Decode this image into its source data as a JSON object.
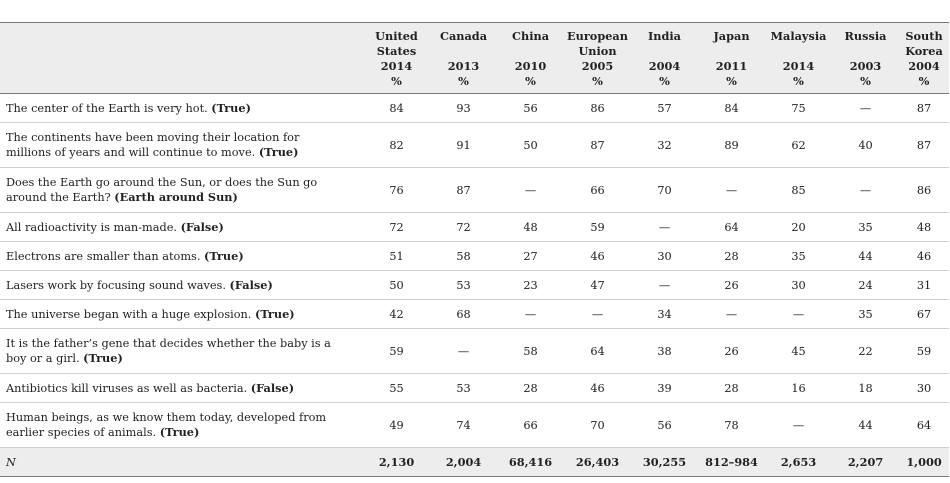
{
  "header": {
    "columns": [
      {
        "label_lines": [
          "United",
          "States"
        ],
        "year": "2014",
        "unit": "%"
      },
      {
        "label_lines": [
          "Canada",
          ""
        ],
        "year": "2013",
        "unit": "%"
      },
      {
        "label_lines": [
          "China",
          ""
        ],
        "year": "2010",
        "unit": "%"
      },
      {
        "label_lines": [
          "European",
          "Union"
        ],
        "year": "2005",
        "unit": "%"
      },
      {
        "label_lines": [
          "India",
          ""
        ],
        "year": "2004",
        "unit": "%"
      },
      {
        "label_lines": [
          "Japan",
          ""
        ],
        "year": "2011",
        "unit": "%"
      },
      {
        "label_lines": [
          "Malaysia",
          ""
        ],
        "year": "2014",
        "unit": "%"
      },
      {
        "label_lines": [
          "Russia",
          ""
        ],
        "year": "2003",
        "unit": "%"
      },
      {
        "label_lines": [
          "South",
          "Korea"
        ],
        "year": "2004",
        "unit": "%"
      }
    ]
  },
  "rows": [
    {
      "question": "The center of the Earth is very hot.",
      "answer": "(True)",
      "values": [
        "84",
        "93",
        "56",
        "86",
        "57",
        "84",
        "75",
        "—",
        "87"
      ]
    },
    {
      "question": "The continents have been moving their location for millions of years and will continue to move.",
      "answer": "(True)",
      "values": [
        "82",
        "91",
        "50",
        "87",
        "32",
        "89",
        "62",
        "40",
        "87"
      ]
    },
    {
      "question": "Does the Earth go around the Sun, or does the Sun go around the Earth?",
      "answer": "(Earth around Sun)",
      "values": [
        "76",
        "87",
        "—",
        "66",
        "70",
        "—",
        "85",
        "—",
        "86"
      ]
    },
    {
      "question": "All radioactivity is man-made.",
      "answer": "(False)",
      "values": [
        "72",
        "72",
        "48",
        "59",
        "—",
        "64",
        "20",
        "35",
        "48"
      ]
    },
    {
      "question": "Electrons are smaller than atoms.",
      "answer": "(True)",
      "values": [
        "51",
        "58",
        "27",
        "46",
        "30",
        "28",
        "35",
        "44",
        "46"
      ]
    },
    {
      "question": "Lasers work by focusing sound waves.",
      "answer": "(False)",
      "values": [
        "50",
        "53",
        "23",
        "47",
        "—",
        "26",
        "30",
        "24",
        "31"
      ]
    },
    {
      "question": "The universe began with a huge explosion.",
      "answer": "(True)",
      "values": [
        "42",
        "68",
        "—",
        "—",
        "34",
        "—",
        "—",
        "35",
        "67"
      ]
    },
    {
      "question": "It is the father’s gene that decides whether the baby is a boy or a girl.",
      "answer": "(True)",
      "values": [
        "59",
        "—",
        "58",
        "64",
        "38",
        "26",
        "45",
        "22",
        "59"
      ]
    },
    {
      "question": "Antibiotics kill viruses as well as bacteria.",
      "answer": "(False)",
      "values": [
        "55",
        "53",
        "28",
        "46",
        "39",
        "28",
        "16",
        "18",
        "30"
      ]
    },
    {
      "question": "Human beings, as we know them today, developed from earlier species of animals.",
      "answer": "(True)",
      "values": [
        "49",
        "74",
        "66",
        "70",
        "56",
        "78",
        "—",
        "44",
        "64"
      ]
    }
  ],
  "n_row": {
    "label": "N",
    "values": [
      "2,130",
      "2,004",
      "68,416",
      "26,403",
      "30,255",
      "812–984",
      "2,653",
      "2,207",
      "1,000"
    ]
  }
}
